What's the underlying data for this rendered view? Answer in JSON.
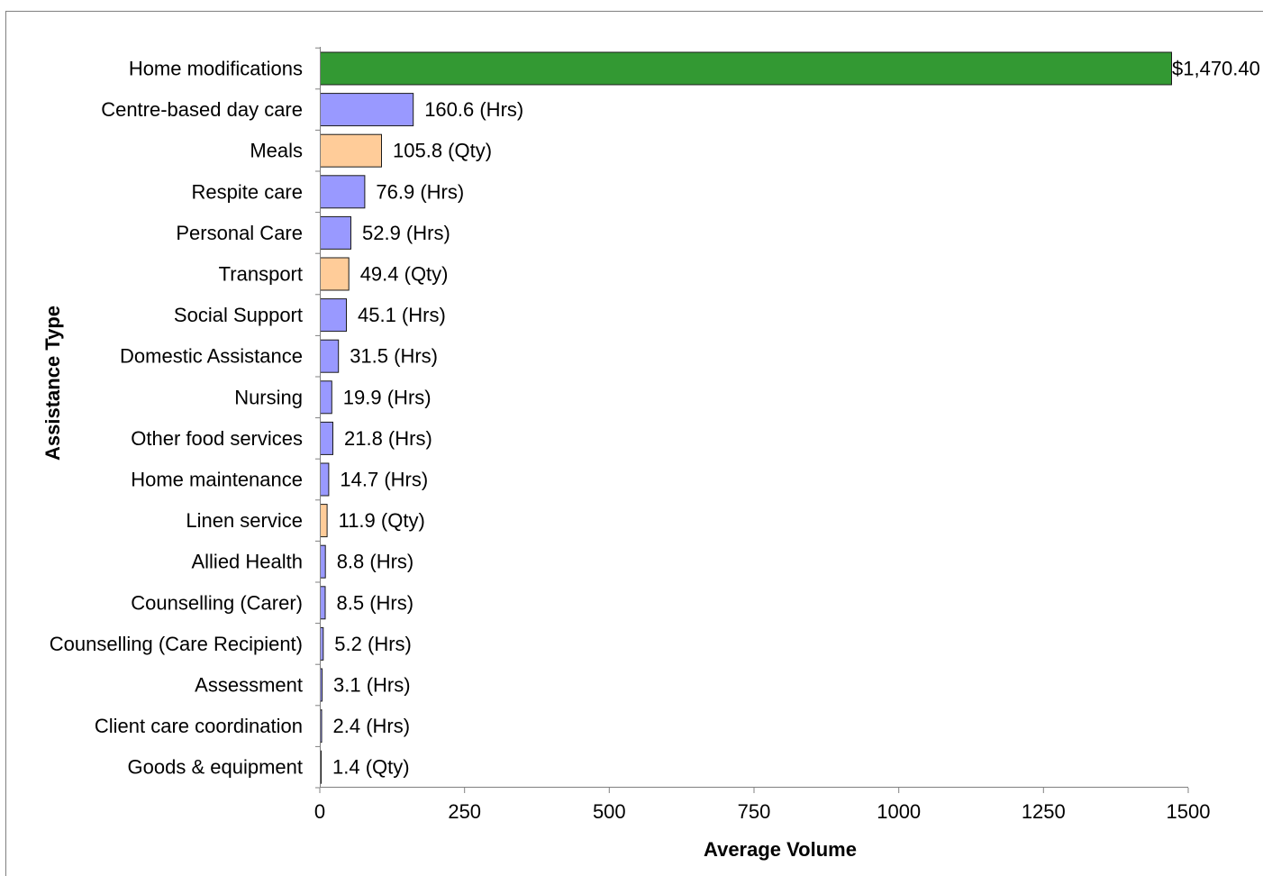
{
  "chart_data": {
    "type": "bar",
    "orientation": "horizontal",
    "title": "",
    "xlabel": "Average Volume",
    "ylabel": "Assistance Type",
    "xlim": [
      0,
      1500
    ],
    "xticks": [
      0,
      250,
      500,
      750,
      1000,
      1250,
      1500
    ],
    "grid": false,
    "legend": "none",
    "categories": [
      "Home modifications",
      "Centre-based day care",
      "Meals",
      "Respite care",
      "Personal Care",
      "Transport",
      "Social Support",
      "Domestic Assistance",
      "Nursing",
      "Other food services",
      "Home maintenance",
      "Linen service",
      "Allied Health",
      "Counselling (Carer)",
      "Counselling (Care Recipient)",
      "Assessment",
      "Client care coordination",
      "Goods & equipment"
    ],
    "values": [
      1470.4,
      160.6,
      105.8,
      76.9,
      52.9,
      49.4,
      45.1,
      31.5,
      19.9,
      21.8,
      14.7,
      11.9,
      8.8,
      8.5,
      5.2,
      3.1,
      2.4,
      1.4
    ],
    "units": [
      "$",
      "Hrs",
      "Qty",
      "Hrs",
      "Hrs",
      "Qty",
      "Hrs",
      "Hrs",
      "Hrs",
      "Hrs",
      "Hrs",
      "Qty",
      "Hrs",
      "Hrs",
      "Hrs",
      "Hrs",
      "Hrs",
      "Qty"
    ],
    "data_labels": [
      "$1,470.40",
      "160.6 (Hrs)",
      "105.8 (Qty)",
      "76.9 (Hrs)",
      "52.9 (Hrs)",
      "49.4 (Qty)",
      "45.1 (Hrs)",
      "31.5 (Hrs)",
      "19.9 (Hrs)",
      "21.8 (Hrs)",
      "14.7 (Hrs)",
      "11.9 (Qty)",
      "8.8 (Hrs)",
      "8.5 (Hrs)",
      "5.2 (Hrs)",
      "3.1 (Hrs)",
      "2.4 (Hrs)",
      "1.4 (Qty)"
    ],
    "colors": {
      "$": "#339933",
      "Hrs": "#9999ff",
      "Qty": "#ffcc99"
    }
  }
}
